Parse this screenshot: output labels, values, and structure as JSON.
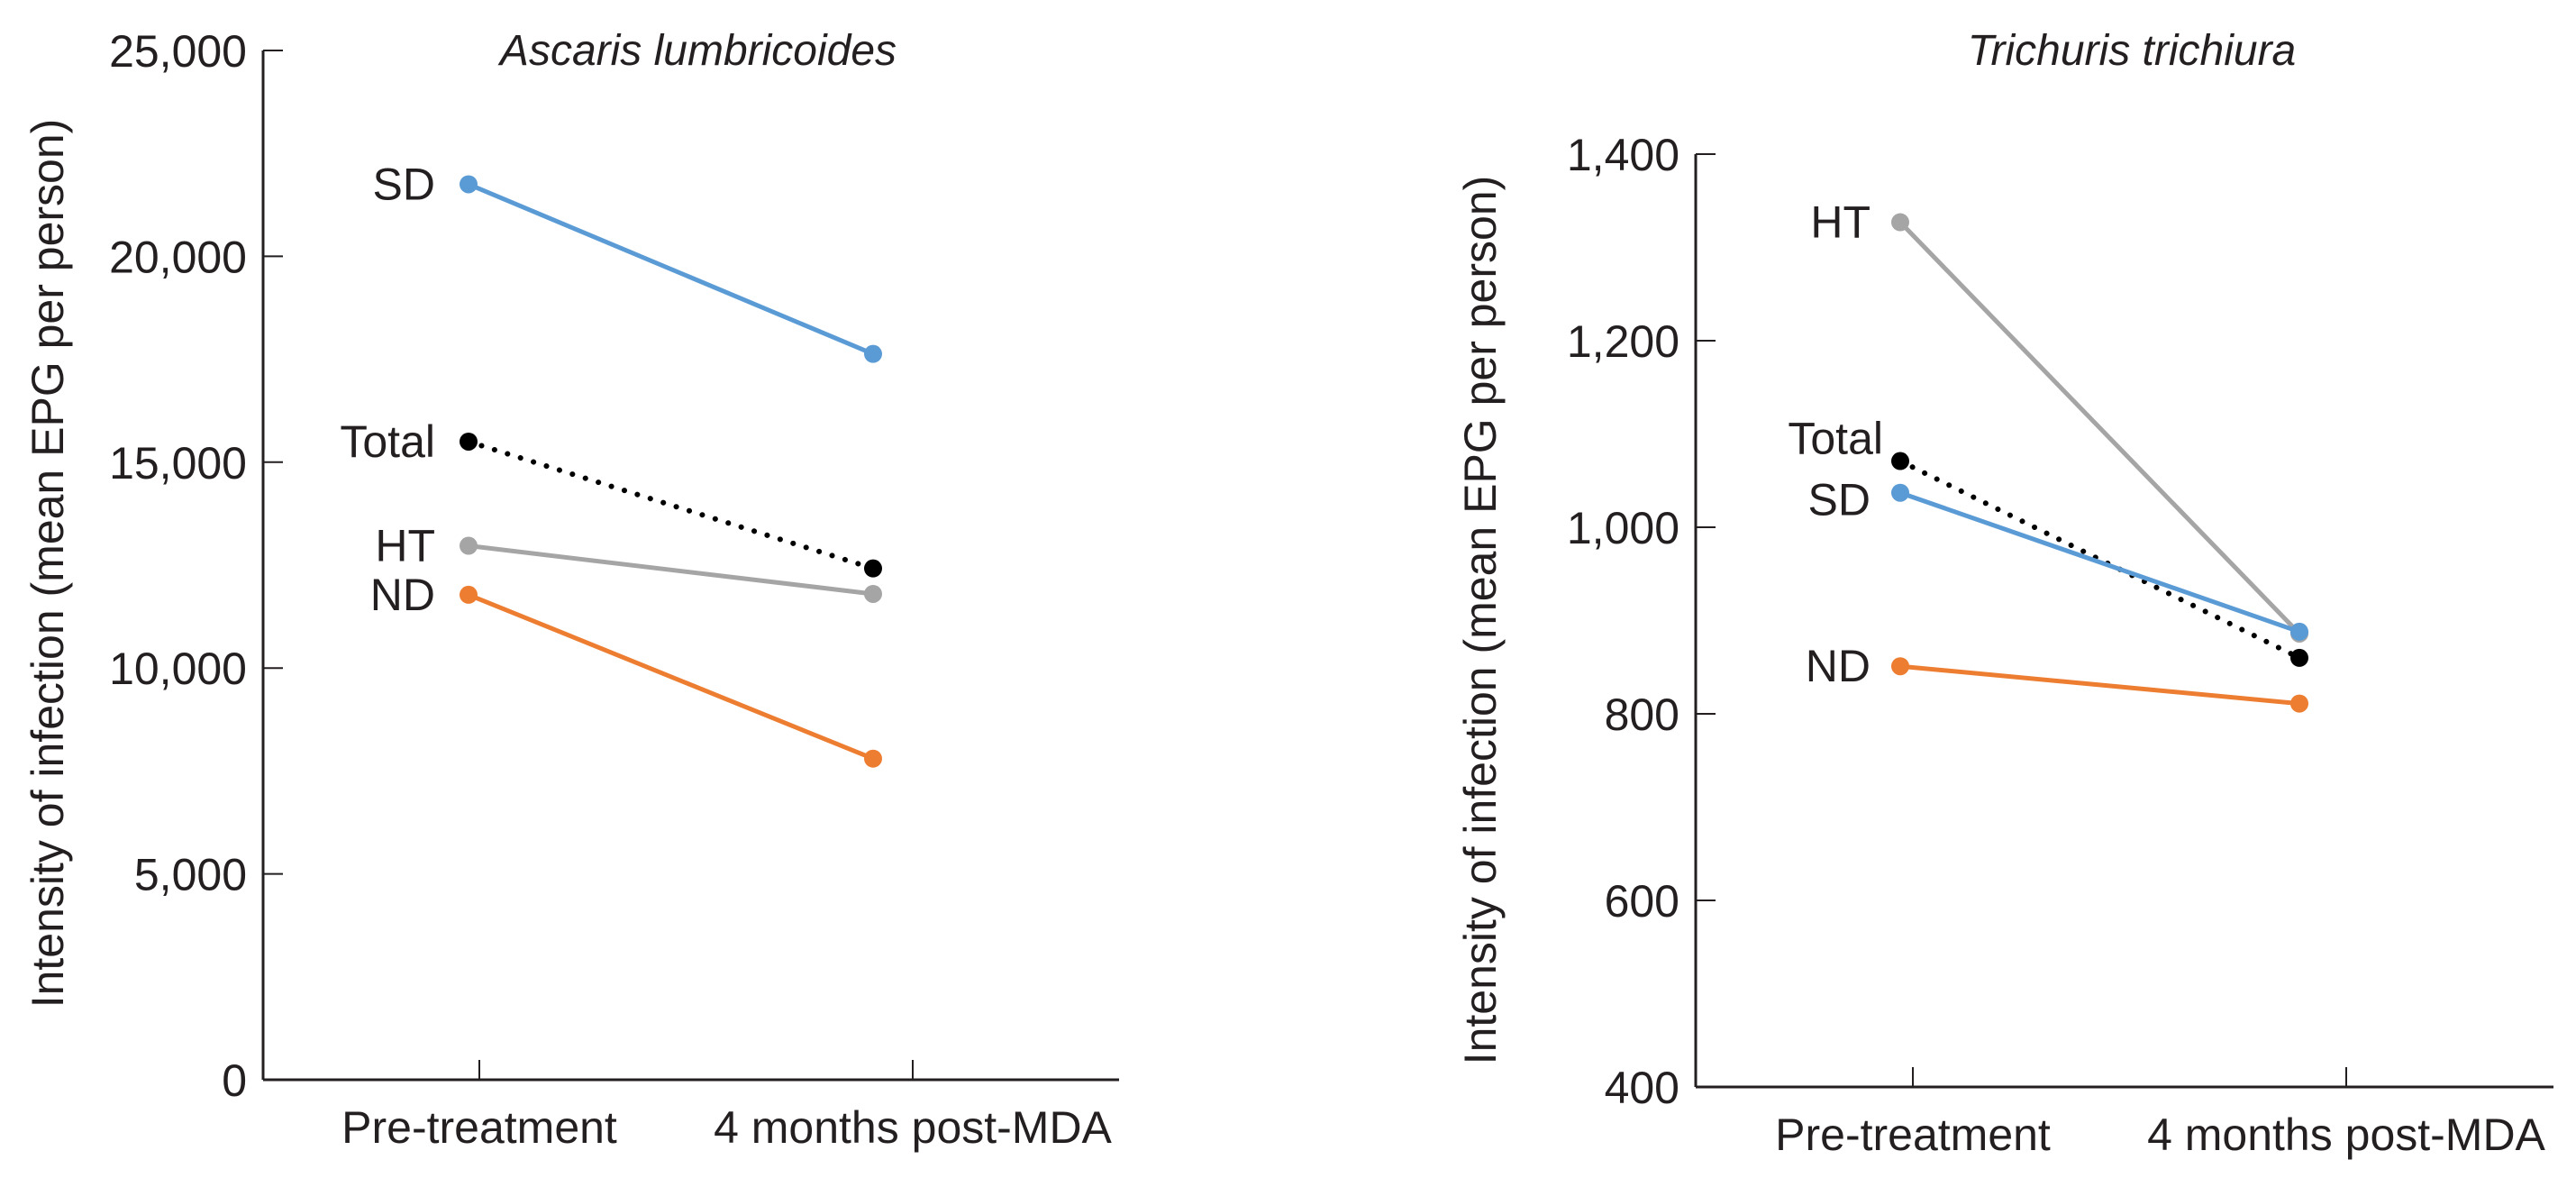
{
  "chart_data": [
    {
      "type": "line",
      "title": "Ascaris lumbricoides",
      "xlabel": "",
      "ylabel": "Intensity of infection (mean EPG per person)",
      "categories": [
        "Pre-treatment",
        "4 months post-MDA"
      ],
      "ylim": [
        0,
        25000
      ],
      "yticks": [
        0,
        5000,
        10000,
        15000,
        20000,
        25000
      ],
      "ytick_labels": [
        "0",
        "5,000",
        "10,000",
        "15,000",
        "20,000",
        "25,000"
      ],
      "grid": false,
      "series": [
        {
          "name": "SD",
          "color": "#5b9bd5",
          "style": "solid",
          "values": [
            21750,
            17630
          ]
        },
        {
          "name": "Total",
          "color": "#000000",
          "style": "dotted",
          "values": [
            15500,
            12420
          ]
        },
        {
          "name": "HT",
          "color": "#a5a5a5",
          "style": "solid",
          "values": [
            12970,
            11800
          ]
        },
        {
          "name": "ND",
          "color": "#ed7d31",
          "style": "solid",
          "values": [
            11780,
            7800
          ]
        }
      ]
    },
    {
      "type": "line",
      "title": "Trichuris trichiura",
      "xlabel": "",
      "ylabel": "Intensity of infection (mean EPG per person)",
      "categories": [
        "Pre-treatment",
        "4 months post-MDA"
      ],
      "ylim": [
        400,
        1400
      ],
      "yticks": [
        400,
        600,
        800,
        1000,
        1200,
        1400
      ],
      "ytick_labels": [
        "400",
        "600",
        "800",
        "1,000",
        "1,200",
        "1,400"
      ],
      "grid": false,
      "series": [
        {
          "name": "HT",
          "color": "#a5a5a5",
          "style": "solid",
          "values": [
            1327,
            886
          ]
        },
        {
          "name": "Total",
          "color": "#000000",
          "style": "dotted",
          "values": [
            1071,
            860
          ]
        },
        {
          "name": "SD",
          "color": "#5b9bd5",
          "style": "solid",
          "values": [
            1037,
            888
          ]
        },
        {
          "name": "ND",
          "color": "#ed7d31",
          "style": "solid",
          "values": [
            851,
            811
          ]
        }
      ]
    }
  ]
}
